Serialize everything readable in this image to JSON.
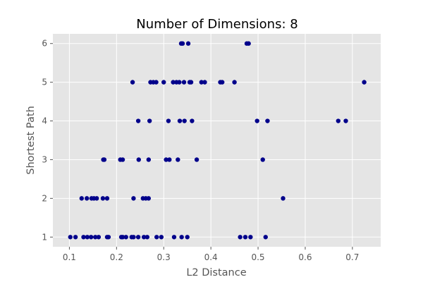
{
  "chart_data": {
    "type": "scatter",
    "title": "Number of Dimensions: 8",
    "xlabel": "L2 Distance",
    "ylabel": "Shortest Path",
    "xlim": [
      0.065,
      0.76
    ],
    "ylim": [
      0.75,
      6.25
    ],
    "xticks": [
      "0.1",
      "0.2",
      "0.3",
      "0.4",
      "0.5",
      "0.6",
      "0.7"
    ],
    "yticks": [
      "1",
      "2",
      "3",
      "4",
      "5",
      "6"
    ],
    "grid": true,
    "background_color": "#e5e5e5",
    "point_color": "#00008b",
    "series": [
      {
        "x": [
          0.102,
          0.113,
          0.13,
          0.138,
          0.146,
          0.155,
          0.162,
          0.18,
          0.183,
          0.21,
          0.213,
          0.22,
          0.232,
          0.236,
          0.246,
          0.258,
          0.265,
          0.285,
          0.295,
          0.322,
          0.338,
          0.35,
          0.462,
          0.473,
          0.484,
          0.516,
          0.126,
          0.137,
          0.147,
          0.152,
          0.158,
          0.171,
          0.18,
          0.236,
          0.256,
          0.262,
          0.268,
          0.553,
          0.172,
          0.174,
          0.208,
          0.213,
          0.247,
          0.268,
          0.305,
          0.312,
          0.33,
          0.37,
          0.51,
          0.246,
          0.27,
          0.31,
          0.334,
          0.344,
          0.36,
          0.498,
          0.52,
          0.67,
          0.686,
          0.234,
          0.272,
          0.278,
          0.284,
          0.3,
          0.32,
          0.327,
          0.333,
          0.343,
          0.355,
          0.358,
          0.38,
          0.387,
          0.42,
          0.424,
          0.45,
          0.725,
          0.337,
          0.34,
          0.352,
          0.476,
          0.48
        ],
        "y": [
          1,
          1,
          1,
          1,
          1,
          1,
          1,
          1,
          1,
          1,
          1,
          1,
          1,
          1,
          1,
          1,
          1,
          1,
          1,
          1,
          1,
          1,
          1,
          1,
          1,
          1,
          2,
          2,
          2,
          2,
          2,
          2,
          2,
          2,
          2,
          2,
          2,
          2,
          3,
          3,
          3,
          3,
          3,
          3,
          3,
          3,
          3,
          3,
          3,
          4,
          4,
          4,
          4,
          4,
          4,
          4,
          4,
          4,
          4,
          5,
          5,
          5,
          5,
          5,
          5,
          5,
          5,
          5,
          5,
          5,
          5,
          5,
          5,
          5,
          5,
          5,
          6,
          6,
          6,
          6,
          6
        ]
      }
    ]
  }
}
